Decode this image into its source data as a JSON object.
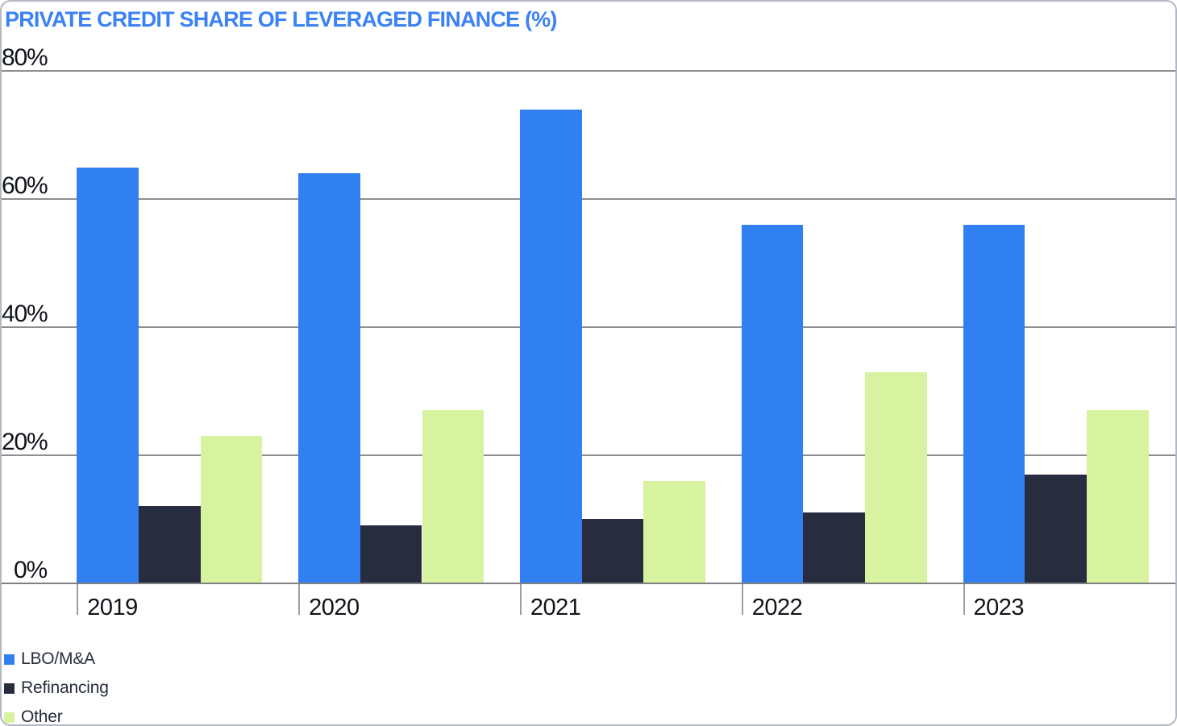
{
  "chart_data": {
    "type": "bar",
    "title": "PRIVATE CREDIT SHARE OF LEVERAGED FINANCE (%)",
    "categories": [
      "2019",
      "2020",
      "2021",
      "2022",
      "2023"
    ],
    "series": [
      {
        "name": "LBO/M&A",
        "color": "#3080f2",
        "values": [
          65,
          64,
          74,
          56,
          56
        ]
      },
      {
        "name": "Refinancing",
        "color": "#272d3e",
        "values": [
          12,
          9,
          10,
          11,
          17
        ]
      },
      {
        "name": "Other",
        "color": "#d7f3a0",
        "values": [
          23,
          27,
          16,
          33,
          27
        ]
      }
    ],
    "xlabel": "",
    "ylabel": "",
    "value_unit": "%",
    "ylim": [
      0,
      80
    ],
    "yticks": [
      {
        "value": 80,
        "label": "80%"
      },
      {
        "value": 60,
        "label": "60%"
      },
      {
        "value": 40,
        "label": "40%"
      },
      {
        "value": 20,
        "label": "20%"
      },
      {
        "value": 0,
        "label": "0%"
      }
    ],
    "grid": true,
    "legend_position": "bottom-left",
    "colors": {
      "title": "#3b82f6",
      "grid": "#8e8e8e",
      "axis_text": "#101419",
      "legend_text": "#272d3e"
    }
  }
}
